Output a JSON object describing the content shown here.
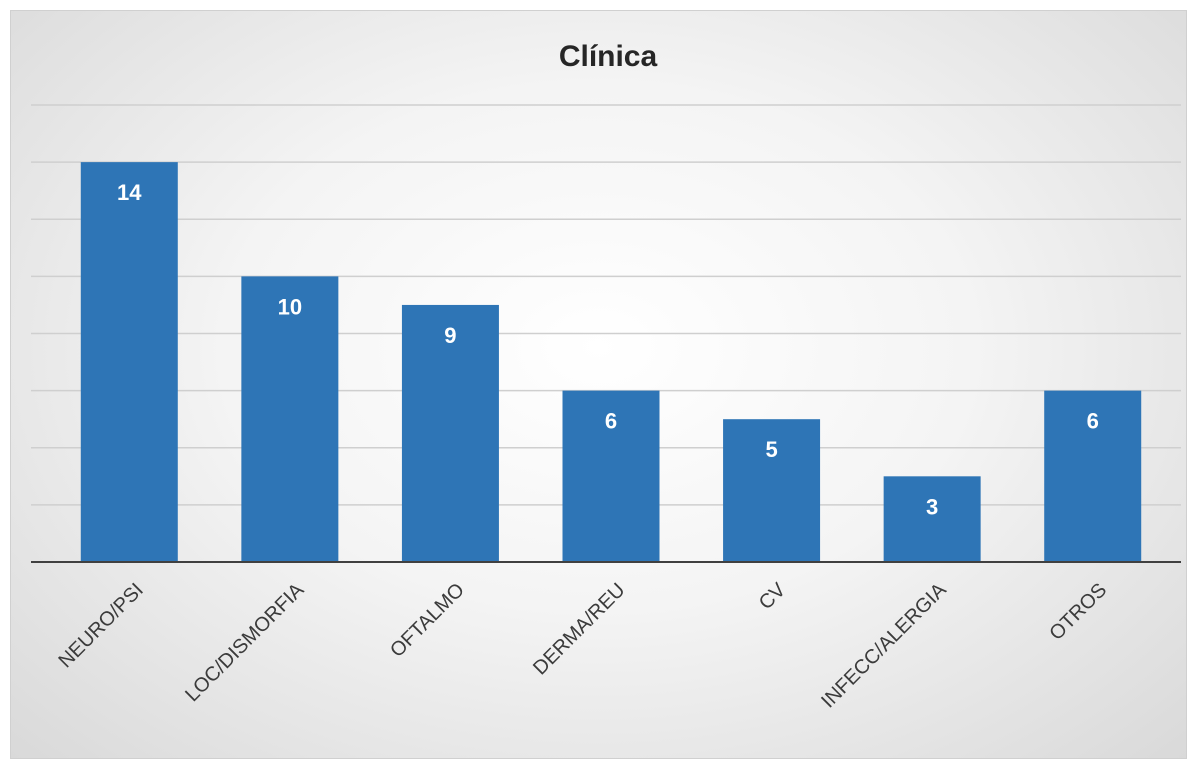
{
  "chart_data": {
    "type": "bar",
    "title": "Clínica",
    "categories": [
      "NEURO/PSI",
      "LOC/DISMORFIA",
      "OFTALMO",
      "DERMA/REU",
      "CV",
      "INFECC/ALERGIA",
      "OTROS"
    ],
    "values": [
      14,
      10,
      9,
      6,
      5,
      3,
      6
    ],
    "ylim": [
      0,
      16
    ],
    "grid": true,
    "y_axis_labels_shown": false,
    "data_labels": true,
    "bar_color": "#2e75b6",
    "legend": "none"
  }
}
